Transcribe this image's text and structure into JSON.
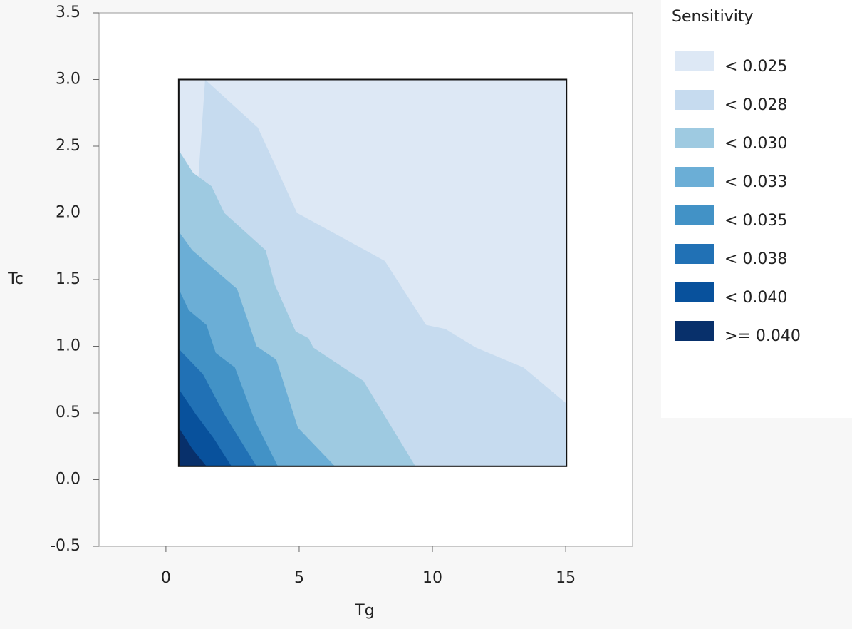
{
  "chart_data": {
    "type": "contour",
    "x_label": "Tg",
    "y_label": "Tc",
    "legend_title": "Sensitivity",
    "xlim": [
      -2.51,
      17.51
    ],
    "ylim": [
      -0.5,
      3.5
    ],
    "xticks": [
      0,
      5,
      10,
      15
    ],
    "yticks": [
      {
        "value": 3.5,
        "label": "3.5"
      },
      {
        "value": 3,
        "label": "3.0"
      },
      {
        "value": 2.5,
        "label": "2.5"
      },
      {
        "value": 2,
        "label": "2.0"
      },
      {
        "value": 1.5,
        "label": "1.5"
      },
      {
        "value": 1,
        "label": "1.0"
      },
      {
        "value": 0.5,
        "label": "0.5"
      },
      {
        "value": 0,
        "label": "0.0"
      },
      {
        "value": -0.5,
        "label": "-0.5"
      }
    ],
    "data_xrange": [
      0.48,
      15.03
    ],
    "data_yrange": [
      0.1,
      3.0
    ],
    "series": [
      {
        "name": "< 0.025",
        "color": "#dde8f5"
      },
      {
        "name": "< 0.028",
        "color": "#c6dbef",
        "boundary": {
          "x": [
            1.47,
            3.45,
            4.92,
            8.21,
            9.76,
            10.48,
            11.63,
            13.42,
            15.03
          ],
          "y": [
            3.0,
            2.64,
            2.0,
            1.64,
            1.16,
            1.13,
            0.99,
            0.84,
            0.57
          ]
        }
      },
      {
        "name": "< 0.030",
        "color": "#9ecae1",
        "boundary": {
          "x": [
            0.48,
            1.02,
            1.71,
            2.19,
            3.74,
            4.09,
            4.87,
            5.35,
            5.53,
            7.41,
            9.36
          ],
          "y": [
            2.47,
            2.3,
            2.2,
            2.0,
            1.72,
            1.46,
            1.11,
            1.06,
            0.99,
            0.74,
            0.1
          ]
        }
      },
      {
        "name": "< 0.033",
        "color": "#6baed6",
        "boundary": {
          "x": [
            0.48,
            0.99,
            2.67,
            3.4,
            4.14,
            4.95,
            6.34
          ],
          "y": [
            1.86,
            1.72,
            1.43,
            1.0,
            0.9,
            0.39,
            0.1
          ]
        }
      },
      {
        "name": "< 0.035",
        "color": "#4292c6",
        "boundary": {
          "x": [
            0.48,
            0.86,
            1.52,
            1.87,
            2.59,
            3.34,
            4.2
          ],
          "y": [
            1.43,
            1.27,
            1.16,
            0.95,
            0.84,
            0.44,
            0.1
          ]
        }
      },
      {
        "name": "< 0.038",
        "color": "#2171b5",
        "boundary": {
          "x": [
            0.48,
            1.39,
            2.19,
            3.4
          ],
          "y": [
            0.98,
            0.79,
            0.49,
            0.1
          ]
        }
      },
      {
        "name": "< 0.040",
        "color": "#08519c",
        "boundary": {
          "x": [
            0.48,
            1.12,
            1.79,
            2.46
          ],
          "y": [
            0.68,
            0.49,
            0.31,
            0.1
          ]
        }
      },
      {
        "name": ">= 0.040",
        "color": "#08306b",
        "boundary": {
          "x": [
            0.48,
            0.99,
            1.52
          ],
          "y": [
            0.39,
            0.23,
            0.1
          ]
        }
      }
    ]
  }
}
